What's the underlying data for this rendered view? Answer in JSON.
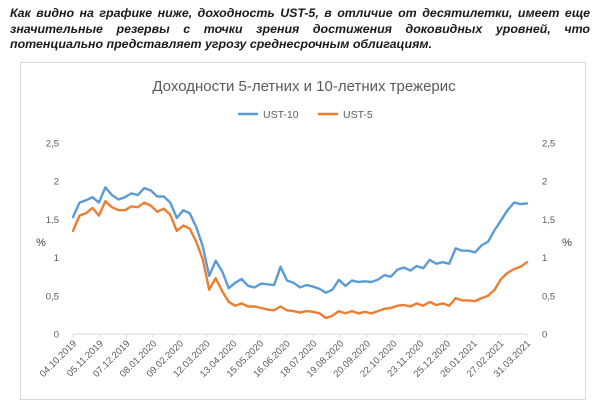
{
  "intro_text": "Как видно на графике ниже, доходность UST-5, в отличие от десятилетки, имеет еще значительные резервы с точки зрения достижения доковидных уровней, что потенциально представляет угрозу среднесрочным облигациям.",
  "chart_data": {
    "type": "line",
    "title": "Доходности 5-летних и 10-летних трежерис",
    "ylabel_left": "%",
    "ylabel_right": "%",
    "ylim": [
      0,
      2.5
    ],
    "yticks": [
      "0",
      "0,5",
      "1",
      "1,5",
      "2",
      "2,5"
    ],
    "grid": false,
    "legend_position": "top-center",
    "x_tick_labels": [
      "04.10.2019",
      "05.11.2019",
      "07.12.2019",
      "08.01.2020",
      "09.02.2020",
      "12.03.2020",
      "13.04.2020",
      "15.05.2020",
      "16.06.2020",
      "18.07.2020",
      "19.08.2020",
      "20.09.2020",
      "22.10.2020",
      "23.11.2020",
      "25.12.2020",
      "26.01.2021",
      "27.02.2021",
      "31.03.2021"
    ],
    "series": [
      {
        "name": "UST-10",
        "color": "#5B9BD5",
        "values": [
          1.53,
          1.72,
          1.75,
          1.79,
          1.72,
          1.92,
          1.82,
          1.76,
          1.79,
          1.84,
          1.82,
          1.91,
          1.88,
          1.8,
          1.8,
          1.72,
          1.52,
          1.62,
          1.58,
          1.4,
          1.15,
          0.76,
          0.96,
          0.82,
          0.6,
          0.67,
          0.72,
          0.63,
          0.61,
          0.66,
          0.65,
          0.64,
          0.88,
          0.7,
          0.67,
          0.61,
          0.64,
          0.62,
          0.59,
          0.54,
          0.58,
          0.71,
          0.63,
          0.7,
          0.68,
          0.69,
          0.68,
          0.71,
          0.77,
          0.75,
          0.84,
          0.87,
          0.83,
          0.89,
          0.86,
          0.97,
          0.92,
          0.94,
          0.92,
          1.12,
          1.09,
          1.09,
          1.07,
          1.16,
          1.21,
          1.36,
          1.49,
          1.62,
          1.72,
          1.7,
          1.71
        ]
      },
      {
        "name": "UST-5",
        "color": "#ED7D31",
        "values": [
          1.35,
          1.55,
          1.58,
          1.65,
          1.55,
          1.74,
          1.66,
          1.62,
          1.62,
          1.67,
          1.66,
          1.72,
          1.68,
          1.6,
          1.64,
          1.56,
          1.35,
          1.42,
          1.38,
          1.21,
          0.98,
          0.58,
          0.73,
          0.56,
          0.42,
          0.37,
          0.4,
          0.36,
          0.36,
          0.34,
          0.32,
          0.31,
          0.36,
          0.31,
          0.3,
          0.28,
          0.3,
          0.29,
          0.27,
          0.21,
          0.24,
          0.3,
          0.27,
          0.3,
          0.27,
          0.29,
          0.27,
          0.3,
          0.33,
          0.34,
          0.37,
          0.38,
          0.36,
          0.4,
          0.37,
          0.42,
          0.38,
          0.4,
          0.37,
          0.47,
          0.44,
          0.44,
          0.43,
          0.47,
          0.5,
          0.58,
          0.72,
          0.8,
          0.85,
          0.88,
          0.94
        ]
      }
    ]
  }
}
